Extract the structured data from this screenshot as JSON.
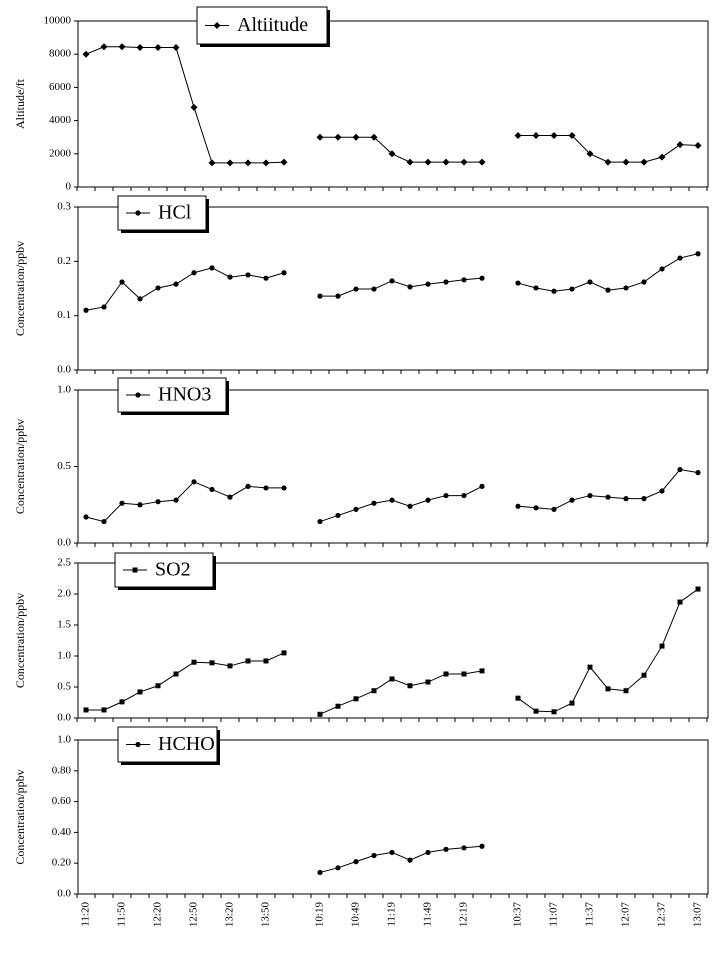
{
  "chart_data": [
    {
      "type": "line",
      "ylabel": "Altitude/ft",
      "ylim": [
        0,
        10000
      ],
      "yticks": [
        0,
        2000,
        4000,
        6000,
        8000,
        10000
      ],
      "series": [
        {
          "name": "Altiitude",
          "color": "#000000",
          "marker": "diamond",
          "values": [
            8000,
            8450,
            8450,
            8400,
            8400,
            8400,
            4800,
            1450,
            1450,
            1450,
            1450,
            1500,
            null,
            3000,
            3000,
            3000,
            3000,
            2000,
            1500,
            1500,
            1500,
            1500,
            1500,
            null,
            3100,
            3100,
            3100,
            3100,
            2000,
            1500,
            1500,
            1500,
            1800,
            2550,
            2500
          ]
        }
      ]
    },
    {
      "type": "line",
      "ylabel": "Concentration/ppbv",
      "ylim": [
        0,
        0.3
      ],
      "yticks": [
        {
          "value": 0,
          "label": "0.0"
        },
        0.1,
        0.2,
        0.3
      ],
      "series": [
        {
          "name": "HCl",
          "color": "#000000",
          "marker": "circle",
          "values": [
            0.11,
            0.116,
            0.162,
            0.131,
            0.151,
            0.158,
            0.179,
            0.188,
            0.171,
            0.175,
            0.169,
            0.179,
            null,
            0.136,
            0.136,
            0.149,
            0.149,
            0.164,
            0.153,
            0.158,
            0.162,
            0.166,
            0.169,
            null,
            0.16,
            0.151,
            0.145,
            0.149,
            0.162,
            0.147,
            0.151,
            0.162,
            0.186,
            0.206,
            0.214
          ]
        }
      ]
    },
    {
      "type": "line",
      "ylabel": "Concentration/ppbv",
      "ylim": [
        0,
        1
      ],
      "yticks": [
        {
          "value": 0,
          "label": "0.0"
        },
        0.5,
        {
          "value": 1,
          "label": "1.0"
        }
      ],
      "series": [
        {
          "name": "HNO3",
          "color": "#000000",
          "marker": "circle",
          "values": [
            0.17,
            0.14,
            0.26,
            0.25,
            0.27,
            0.28,
            0.4,
            0.35,
            0.3,
            0.37,
            0.36,
            0.36,
            null,
            0.14,
            0.18,
            0.22,
            0.26,
            0.28,
            0.24,
            0.28,
            0.31,
            0.31,
            0.37,
            null,
            0.24,
            0.23,
            0.22,
            0.28,
            0.31,
            0.3,
            0.29,
            0.29,
            0.34,
            0.48,
            0.46
          ]
        }
      ]
    },
    {
      "type": "line",
      "ylabel": "Concentration/ppbv",
      "ylim": [
        0,
        2.5
      ],
      "yticks": [
        {
          "value": 0,
          "label": "0.0"
        },
        0.5,
        {
          "value": 1,
          "label": "1.0"
        },
        1.5,
        {
          "value": 2,
          "label": "2.0"
        },
        2.5
      ],
      "series": [
        {
          "name": "SO2",
          "color": "#000000",
          "marker": "square",
          "values": [
            0.13,
            0.13,
            0.26,
            0.42,
            0.52,
            0.71,
            0.9,
            0.89,
            0.84,
            0.92,
            0.92,
            1.05,
            null,
            0.06,
            0.19,
            0.31,
            0.44,
            0.63,
            0.52,
            0.58,
            0.71,
            0.71,
            0.76,
            null,
            0.32,
            0.11,
            0.1,
            0.24,
            0.82,
            0.47,
            0.44,
            0.69,
            1.16,
            1.87,
            2.08
          ]
        }
      ]
    },
    {
      "type": "line",
      "ylabel": "Concentration/ppbv",
      "ylim": [
        0,
        1
      ],
      "yticks": [
        {
          "value": 0,
          "label": "0.0"
        },
        {
          "value": 0.2,
          "label": "0.20"
        },
        {
          "value": 0.4,
          "label": "0.40"
        },
        {
          "value": 0.6,
          "label": "0.60"
        },
        {
          "value": 0.8,
          "label": "0.80"
        },
        {
          "value": 1,
          "label": "1.0"
        }
      ],
      "series": [
        {
          "name": "HCHO",
          "color": "#000000",
          "marker": "circle",
          "values": [
            null,
            null,
            null,
            null,
            null,
            null,
            null,
            null,
            null,
            null,
            null,
            null,
            null,
            0.14,
            0.17,
            0.21,
            0.25,
            0.27,
            0.22,
            0.27,
            0.29,
            0.3,
            0.31,
            null,
            null,
            null,
            null,
            null,
            null,
            null,
            null,
            null,
            null,
            null,
            null
          ]
        }
      ],
      "categories": [
        "11:20",
        null,
        "11:50",
        null,
        "12:20",
        null,
        "12:50",
        null,
        "13:20",
        null,
        "13:50",
        null,
        null,
        "10:19",
        null,
        "10:49",
        null,
        "11:19",
        null,
        "11:49",
        null,
        "12:19",
        null,
        null,
        "10:37",
        null,
        "11:07",
        null,
        "11:37",
        null,
        "12:07",
        null,
        "12:37",
        null,
        "13:07"
      ]
    }
  ]
}
